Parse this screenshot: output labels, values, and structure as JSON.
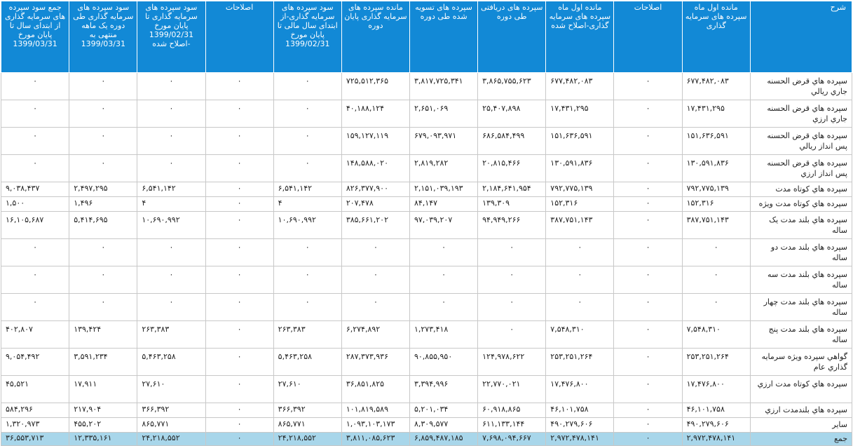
{
  "table": {
    "headers": [
      "شرح",
      "مانده اول ماه سپرده های سرمایه گذاری",
      "اصلاحات",
      "مانده اول ماه سپرده های سرمایه گذاری-اصلاح شده",
      "سپرده های دریافتی طی دوره",
      "سپرده های تسویه شده طی دوره",
      "مانده سپرده های سرمایه گذاری پایان دوره",
      "سود سپرده های سرمایه گذاری-از ابتدای سال مالی تا پایان مورخ 1399/02/31",
      "اصلاحات",
      "سود سپرده های سرمایه گذاری تا پایان مورخ 1399/02/31 -اصلاح شده",
      "سود سپرده های سرمایه گذاری طی دوره یک ماهه منتهی به 1399/03/31",
      "جمع سود سپرده های سرمایه گذاری از ابتدای سال تا پایان مورخ 1399/03/31"
    ],
    "rows": [
      {
        "cells": [
          "سپرده هاي قرض الحسنه جاري ريالي",
          "۶۷۷,۴۸۲,۰۸۳",
          "۰",
          "۶۷۷,۴۸۲,۰۸۳",
          "۳,۸۶۵,۷۵۵,۶۲۳",
          "۳,۸۱۷,۷۲۵,۳۴۱",
          "۷۲۵,۵۱۲,۳۶۵",
          "۰",
          "۰",
          "۰",
          "۰",
          "۰"
        ]
      },
      {
        "cells": [
          "سپرده هاي قرض الحسنه جاري ارزي",
          "۱۷,۴۳۱,۲۹۵",
          "۰",
          "۱۷,۴۳۱,۲۹۵",
          "۲۵,۴۰۷,۸۹۸",
          "۲,۶۵۱,۰۶۹",
          "۴۰,۱۸۸,۱۲۴",
          "۰",
          "۰",
          "۰",
          "۰",
          "۰"
        ]
      },
      {
        "cells": [
          "سپرده هاي قرض الحسنه پس انداز ريالي",
          "۱۵۱,۶۳۶,۵۹۱",
          "۰",
          "۱۵۱,۶۳۶,۵۹۱",
          "۶۸۶,۵۸۴,۴۹۹",
          "۶۷۹,۰۹۳,۹۷۱",
          "۱۵۹,۱۲۷,۱۱۹",
          "۰",
          "۰",
          "۰",
          "۰",
          "۰"
        ]
      },
      {
        "cells": [
          "سپرده هاي قرض الحسنه پس انداز ارزي",
          "۱۳۰,۵۹۱,۸۳۶",
          "۰",
          "۱۳۰,۵۹۱,۸۳۶",
          "۲۰,۸۱۵,۴۶۶",
          "۲,۸۱۹,۲۸۲",
          "۱۴۸,۵۸۸,۰۲۰",
          "۰",
          "۰",
          "۰",
          "۰",
          "۰"
        ]
      },
      {
        "short": true,
        "cells": [
          "سپرده هاي كوتاه مدت",
          "۷۹۲,۷۷۵,۱۳۹",
          "۰",
          "۷۹۲,۷۷۵,۱۳۹",
          "۲,۱۸۴,۶۴۱,۹۵۴",
          "۲,۱۵۱,۰۳۹,۱۹۳",
          "۸۲۶,۳۷۷,۹۰۰",
          "۶,۵۴۱,۱۴۲",
          "۰",
          "۶,۵۴۱,۱۴۲",
          "۲,۴۹۷,۲۹۵",
          "۹,۰۳۸,۴۳۷"
        ]
      },
      {
        "short": true,
        "cells": [
          "سپرده هاي كوتاه مدت ويژه",
          "۱۵۲,۳۱۶",
          "۰",
          "۱۵۲,۳۱۶",
          "۱۳۹,۳۰۹",
          "۸۴,۱۴۷",
          "۲۰۷,۴۷۸",
          "۴",
          "۰",
          "۴",
          "۱,۴۹۶",
          "۱,۵۰۰"
        ]
      },
      {
        "cells": [
          "سپرده هاي بلند مدت يک ساله",
          "۳۸۷,۷۵۱,۱۴۳",
          "۰",
          "۳۸۷,۷۵۱,۱۴۳",
          "۹۴,۹۴۹,۲۶۶",
          "۹۷,۰۳۹,۲۰۷",
          "۳۸۵,۶۶۱,۲۰۲",
          "۱۰,۶۹۰,۹۹۲",
          "۰",
          "۱۰,۶۹۰,۹۹۲",
          "۵,۴۱۴,۶۹۵",
          "۱۶,۱۰۵,۶۸۷"
        ]
      },
      {
        "cells": [
          "سپرده هاي بلند مدت دو ساله",
          "۰",
          "۰",
          "۰",
          "۰",
          "۰",
          "۰",
          "۰",
          "۰",
          "۰",
          "۰",
          "۰"
        ]
      },
      {
        "cells": [
          "سپرده هاي بلند مدت سه ساله",
          "۰",
          "۰",
          "۰",
          "۰",
          "۰",
          "۰",
          "۰",
          "۰",
          "۰",
          "۰",
          "۰"
        ]
      },
      {
        "cells": [
          "سپرده هاي بلند مدت چهار ساله",
          "۰",
          "۰",
          "۰",
          "۰",
          "۰",
          "۰",
          "۰",
          "۰",
          "۰",
          "۰",
          "۰"
        ]
      },
      {
        "cells": [
          "سپرده هاي بلند مدت پنج ساله",
          "۷,۵۴۸,۳۱۰",
          "۰",
          "۷,۵۴۸,۳۱۰",
          "۰",
          "۱,۲۷۳,۴۱۸",
          "۶,۲۷۴,۸۹۲",
          "۲۶۳,۳۸۳",
          "۰",
          "۲۶۳,۳۸۳",
          "۱۳۹,۴۲۴",
          "۴۰۲,۸۰۷"
        ]
      },
      {
        "cells": [
          "گواهي سپرده ويژه سرمايه گذاري عام",
          "۲۵۳,۲۵۱,۲۶۴",
          "۰",
          "۲۵۳,۲۵۱,۲۶۴",
          "۱۲۴,۹۷۸,۶۲۲",
          "۹۰,۸۵۵,۹۵۰",
          "۲۸۷,۳۷۳,۹۳۶",
          "۵,۴۶۳,۲۵۸",
          "۰",
          "۵,۴۶۳,۲۵۸",
          "۳,۵۹۱,۲۳۴",
          "۹,۰۵۴,۴۹۲"
        ]
      },
      {
        "cells": [
          "سپرده هاي کوتاه مدت ارزي",
          "۱۷,۴۷۶,۸۰۰",
          "۰",
          "۱۷,۴۷۶,۸۰۰",
          "۲۲,۷۷۰,۰۲۱",
          "۳,۳۹۴,۹۹۶",
          "۳۶,۸۵۱,۸۲۵",
          "۲۷,۶۱۰",
          "۰",
          "۲۷,۶۱۰",
          "۱۷,۹۱۱",
          "۴۵,۵۲۱"
        ]
      },
      {
        "short": true,
        "cells": [
          "سپرده هاي بلندمدت ارزي",
          "۴۶,۱۰۱,۷۵۸",
          "۰",
          "۴۶,۱۰۱,۷۵۸",
          "۶۰,۹۱۸,۸۶۵",
          "۵,۲۰۱,۰۳۴",
          "۱۰۱,۸۱۹,۵۸۹",
          "۳۶۶,۳۹۲",
          "۰",
          "۳۶۶,۳۹۲",
          "۲۱۷,۹۰۴",
          "۵۸۴,۲۹۶"
        ]
      },
      {
        "short": true,
        "cells": [
          "ساير",
          "۴۹۰,۲۷۹,۶۰۶",
          "۰",
          "۴۹۰,۲۷۹,۶۰۶",
          "۶۱۱,۱۳۳,۱۴۴",
          "۸,۳۰۹,۵۷۷",
          "۱,۰۹۳,۱۰۳,۱۷۳",
          "۸۶۵,۷۷۱",
          "۰",
          "۸۶۵,۷۷۱",
          "۴۵۵,۲۰۲",
          "۱,۳۲۰,۹۷۳"
        ]
      }
    ],
    "total": {
      "cells": [
        "جمع",
        "۲,۹۷۲,۴۷۸,۱۴۱",
        "۰",
        "۲,۹۷۲,۴۷۸,۱۴۱",
        "۷,۶۹۸,۰۹۴,۶۶۷",
        "۶,۸۵۹,۴۸۷,۱۸۵",
        "۳,۸۱۱,۰۸۵,۶۲۳",
        "۲۴,۲۱۸,۵۵۲",
        "۰",
        "۲۴,۲۱۸,۵۵۲",
        "۱۲,۳۳۵,۱۶۱",
        "۳۶,۵۵۳,۷۱۳"
      ]
    }
  },
  "colors": {
    "header_bg": "#1289d6",
    "header_text": "#ffffff",
    "total_bg": "#a8d6ea",
    "grid": "#c8c8c8"
  }
}
